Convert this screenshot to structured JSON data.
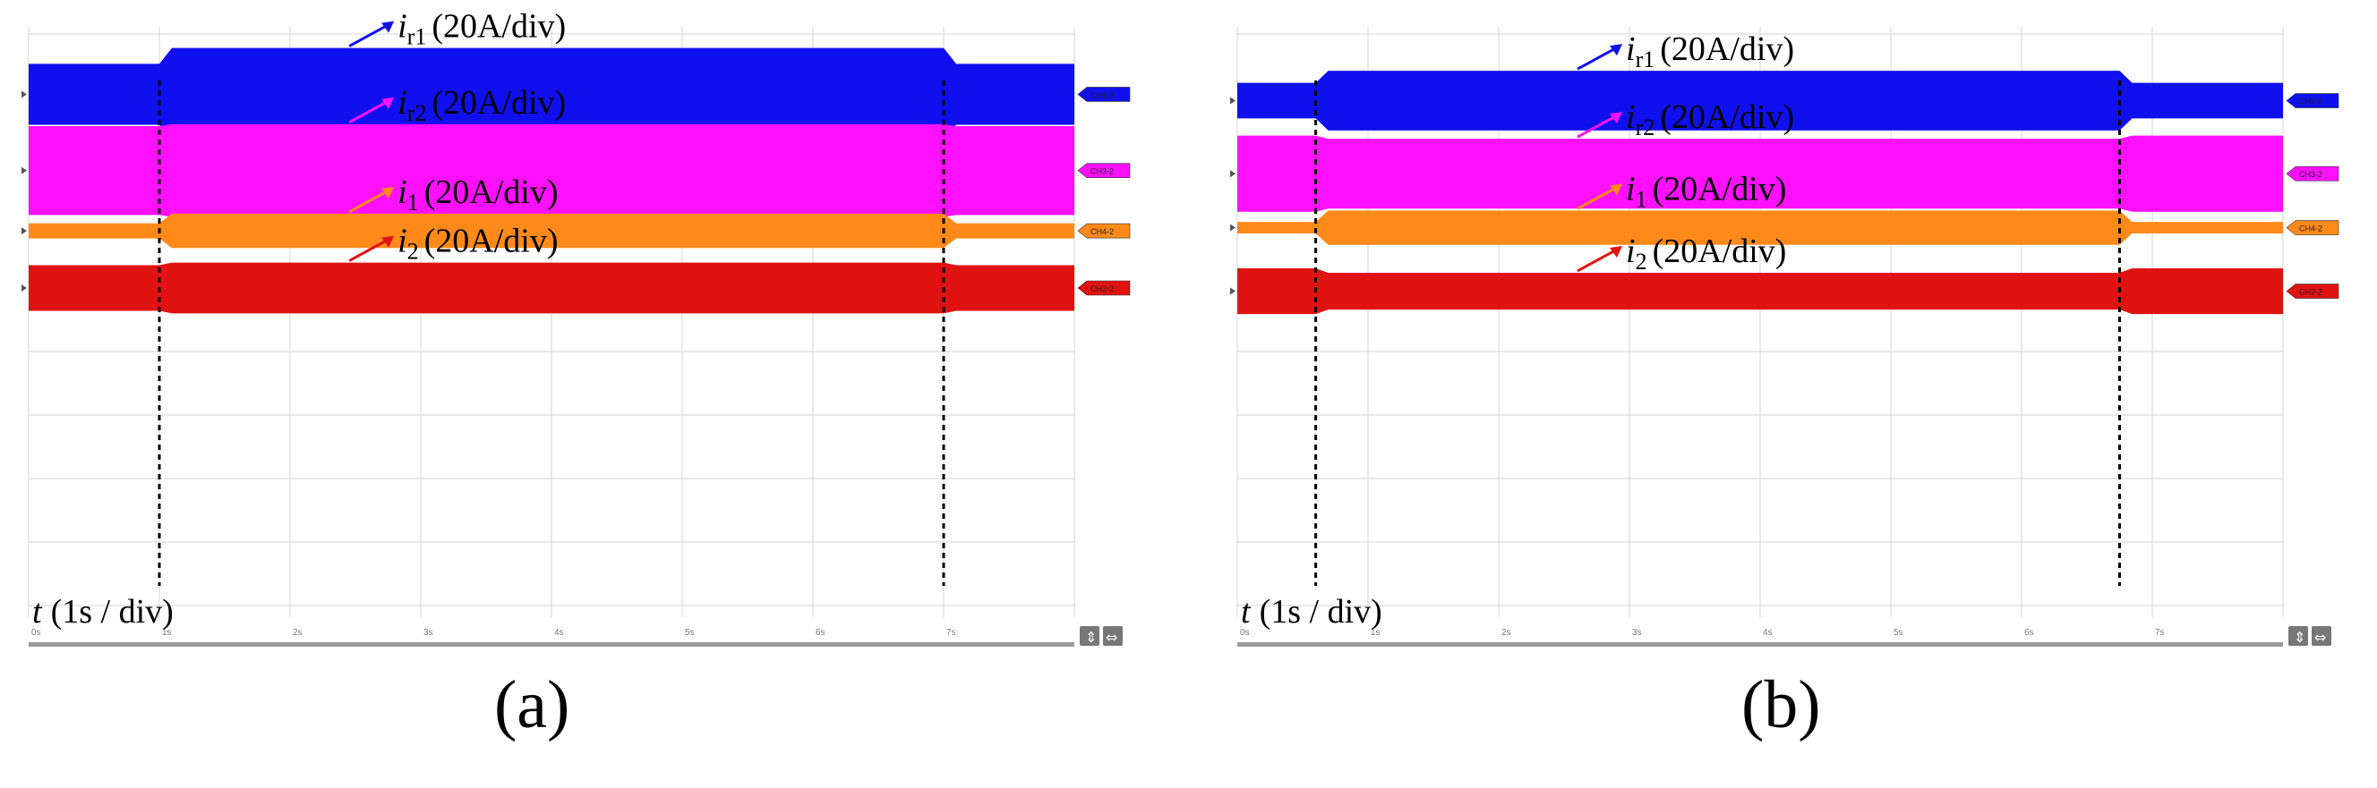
{
  "chart_data": [
    {
      "type": "area",
      "panel": "a",
      "caption": "(a)",
      "x_axis": {
        "label_italic": "t",
        "label_rest": "(1s / div)",
        "ticks": [
          "0s",
          "1s",
          "2s",
          "3s",
          "4s",
          "5s",
          "6s",
          "7s"
        ],
        "range": [
          0,
          8
        ]
      },
      "markers_s": [
        1.0,
        7.0
      ],
      "series": [
        {
          "name": "i_r1",
          "label_main": "i",
          "label_sub": "r1",
          "label_rest": "(20A/div)",
          "color": "#1010ee",
          "marker": "CH1-2",
          "center_div": 0.95,
          "amplitude_div": [
            0.48,
            0.73,
            0.48
          ],
          "label_time_s": 2.85
        },
        {
          "name": "i_r2",
          "label_main": "i",
          "label_sub": "r2",
          "label_rest": "(20A/div)",
          "color": "#ff10ff",
          "marker": "CH3-2",
          "center_div": 2.15,
          "amplitude_div": [
            0.7,
            0.73,
            0.7
          ],
          "label_time_s": 2.85
        },
        {
          "name": "i_1",
          "label_main": "i",
          "label_sub": "1",
          "label_rest": "(20A/div)",
          "color": "#ff8a1a",
          "marker": "CH4-2",
          "center_div": 3.1,
          "amplitude_div": [
            0.12,
            0.27,
            0.12
          ],
          "label_time_s": 2.85
        },
        {
          "name": "i_2",
          "label_main": "i",
          "label_sub": "2",
          "label_rest": "(20A/div)",
          "color": "#e01212",
          "marker": "CH2-2",
          "center_div": 4.0,
          "amplitude_div": [
            0.36,
            0.4,
            0.36
          ],
          "label_time_s": 2.85
        }
      ]
    },
    {
      "type": "area",
      "panel": "b",
      "caption": "(b)",
      "x_axis": {
        "label_italic": "t",
        "label_rest": "(1s / div)",
        "ticks": [
          "0s",
          "1s",
          "2s",
          "3s",
          "4s",
          "5s",
          "6s",
          "7s"
        ],
        "range": [
          0,
          8
        ]
      },
      "markers_s": [
        0.6,
        6.75
      ],
      "series": [
        {
          "name": "i_r1",
          "label_main": "i",
          "label_sub": "r1",
          "label_rest": "(20A/div)",
          "color": "#1010ee",
          "marker": "CH1-2",
          "center_div": 1.05,
          "amplitude_div": [
            0.28,
            0.47,
            0.28
          ],
          "label_time_s": 3.0
        },
        {
          "name": "i_r2",
          "label_main": "i",
          "label_sub": "r2",
          "label_rest": "(20A/div)",
          "color": "#ff10ff",
          "marker": "CH3-2",
          "center_div": 2.2,
          "amplitude_div": [
            0.6,
            0.55,
            0.6
          ],
          "label_time_s": 3.0
        },
        {
          "name": "i_1",
          "label_main": "i",
          "label_sub": "1",
          "label_rest": "(20A/div)",
          "color": "#ff8a1a",
          "marker": "CH4-2",
          "center_div": 3.05,
          "amplitude_div": [
            0.09,
            0.27,
            0.09
          ],
          "label_time_s": 3.0
        },
        {
          "name": "i_2",
          "label_main": "i",
          "label_sub": "2",
          "label_rest": "(20A/div)",
          "color": "#e01212",
          "marker": "CH2-2",
          "center_div": 4.05,
          "amplitude_div": [
            0.36,
            0.29,
            0.36
          ],
          "label_time_s": 3.0
        }
      ]
    }
  ]
}
